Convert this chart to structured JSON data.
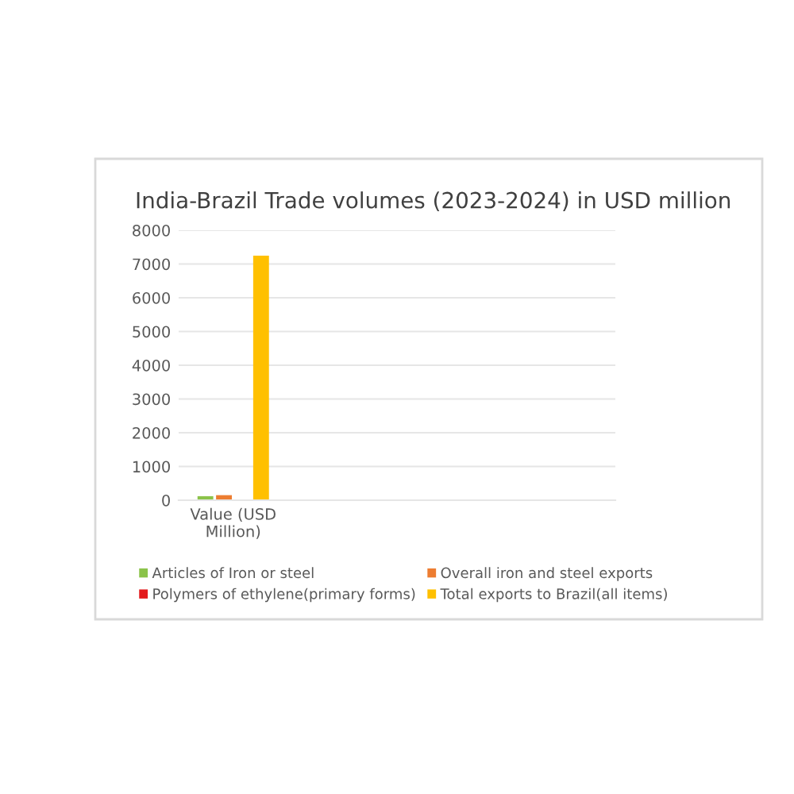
{
  "chart_data": {
    "type": "bar",
    "title": "India-Brazil Trade volumes (2023-2024) in USD million",
    "categories": [
      "Value (USD\nMillion)",
      null,
      null,
      null
    ],
    "series": [
      {
        "name": "Articles of Iron or steel",
        "color": "#8bc34a",
        "values": [
          120,
          null,
          null,
          null
        ]
      },
      {
        "name": "Overall iron and steel exports",
        "color": "#ed7d31",
        "values": [
          150,
          null,
          null,
          null
        ]
      },
      {
        "name": "Polymers of ethylene(primary forms)",
        "color": "#e31a1c",
        "values": [
          null,
          null,
          null,
          null
        ]
      },
      {
        "name": "Total exports to Brazil(all items)",
        "color": "#ffc000",
        "values": [
          7250,
          null,
          null,
          null
        ]
      }
    ],
    "ylim": [
      0,
      8000
    ],
    "yticks": [
      0,
      1000,
      2000,
      3000,
      4000,
      5000,
      6000,
      7000,
      8000
    ],
    "grid": "y",
    "legend": "bottom"
  }
}
